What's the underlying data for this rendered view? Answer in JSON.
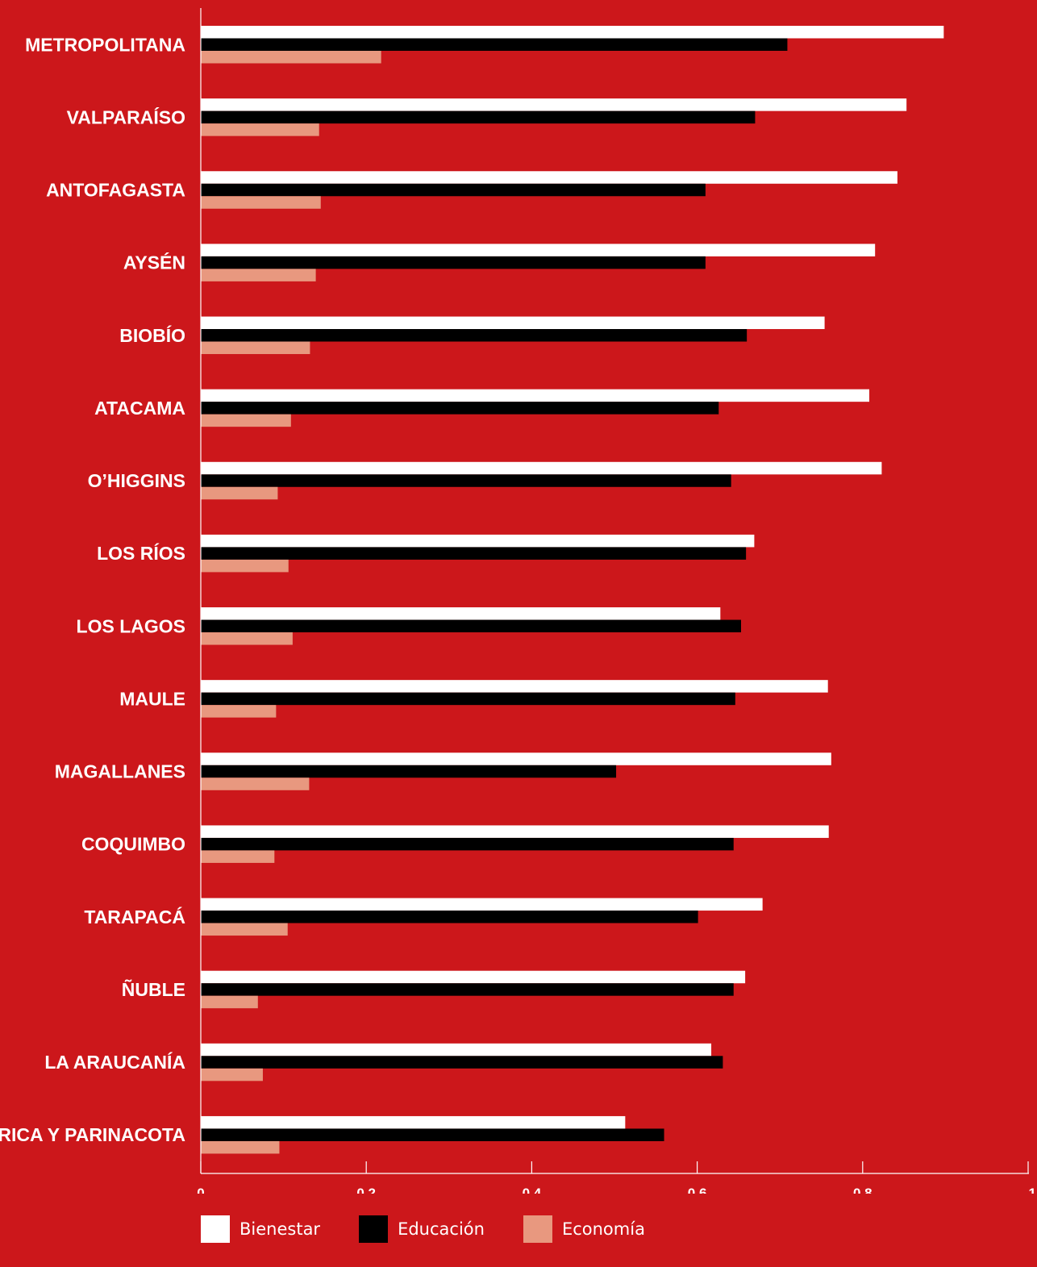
{
  "chart_data": {
    "type": "bar",
    "orientation": "horizontal",
    "categories": [
      "METROPOLITANA",
      "VALPARAÍSO",
      "ANTOFAGASTA",
      "AYSÉN",
      "BIOBÍO",
      "ATACAMA",
      "O’HIGGINS",
      "LOS RÍOS",
      "LOS LAGOS",
      "MAULE",
      "MAGALLANES",
      "COQUIMBO",
      "TARAPACÁ",
      "ÑUBLE",
      "LA ARAUCANÍA",
      "ARICA Y PARINACOTA"
    ],
    "series": [
      {
        "name": "Bienestar",
        "color": "#ffffff",
        "values": [
          0.898,
          0.853,
          0.842,
          0.815,
          0.754,
          0.808,
          0.823,
          0.669,
          0.628,
          0.758,
          0.762,
          0.759,
          0.679,
          0.658,
          0.617,
          0.513
        ]
      },
      {
        "name": "Educación",
        "color": "#000000",
        "values": [
          0.709,
          0.67,
          0.61,
          0.61,
          0.66,
          0.626,
          0.641,
          0.659,
          0.653,
          0.646,
          0.502,
          0.644,
          0.601,
          0.644,
          0.631,
          0.56
        ]
      },
      {
        "name": "Economía",
        "color": "#e8987f",
        "values": [
          0.218,
          0.143,
          0.145,
          0.139,
          0.132,
          0.109,
          0.093,
          0.106,
          0.111,
          0.091,
          0.131,
          0.089,
          0.105,
          0.069,
          0.075,
          0.095
        ]
      }
    ],
    "xlim": [
      0,
      1
    ],
    "xticks": [
      0,
      0.2,
      0.4,
      0.6,
      0.8,
      1
    ],
    "xtick_labels": [
      "0",
      "0,2",
      "0,4",
      "0,6",
      "0,8",
      "1"
    ],
    "grid": false,
    "legend_position": "bottom-left",
    "title": "",
    "xlabel": "",
    "ylabel": ""
  },
  "background_color": "#cc171b"
}
